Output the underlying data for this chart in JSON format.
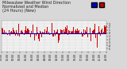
{
  "title": "Milwaukee Weather Wind Direction\nNormalized and Median\n(24 Hours) (New)",
  "title_fontsize": 3.5,
  "title_color": "#222222",
  "background_color": "#d8d8d8",
  "plot_background": "#f0f0f0",
  "bar_color": "#cc0000",
  "median_color": "#0000cc",
  "median_linewidth": 0.8,
  "n_points": 288,
  "ylim": [
    -6,
    4
  ],
  "legend_colors": [
    "#0000cc",
    "#cc0000"
  ],
  "grid_color": "#bbbbbb",
  "tick_fontsize": 2.2,
  "yticks": [
    -5,
    -4,
    -3,
    -2,
    -1,
    0,
    1,
    2,
    3
  ],
  "n_xticks": 18
}
